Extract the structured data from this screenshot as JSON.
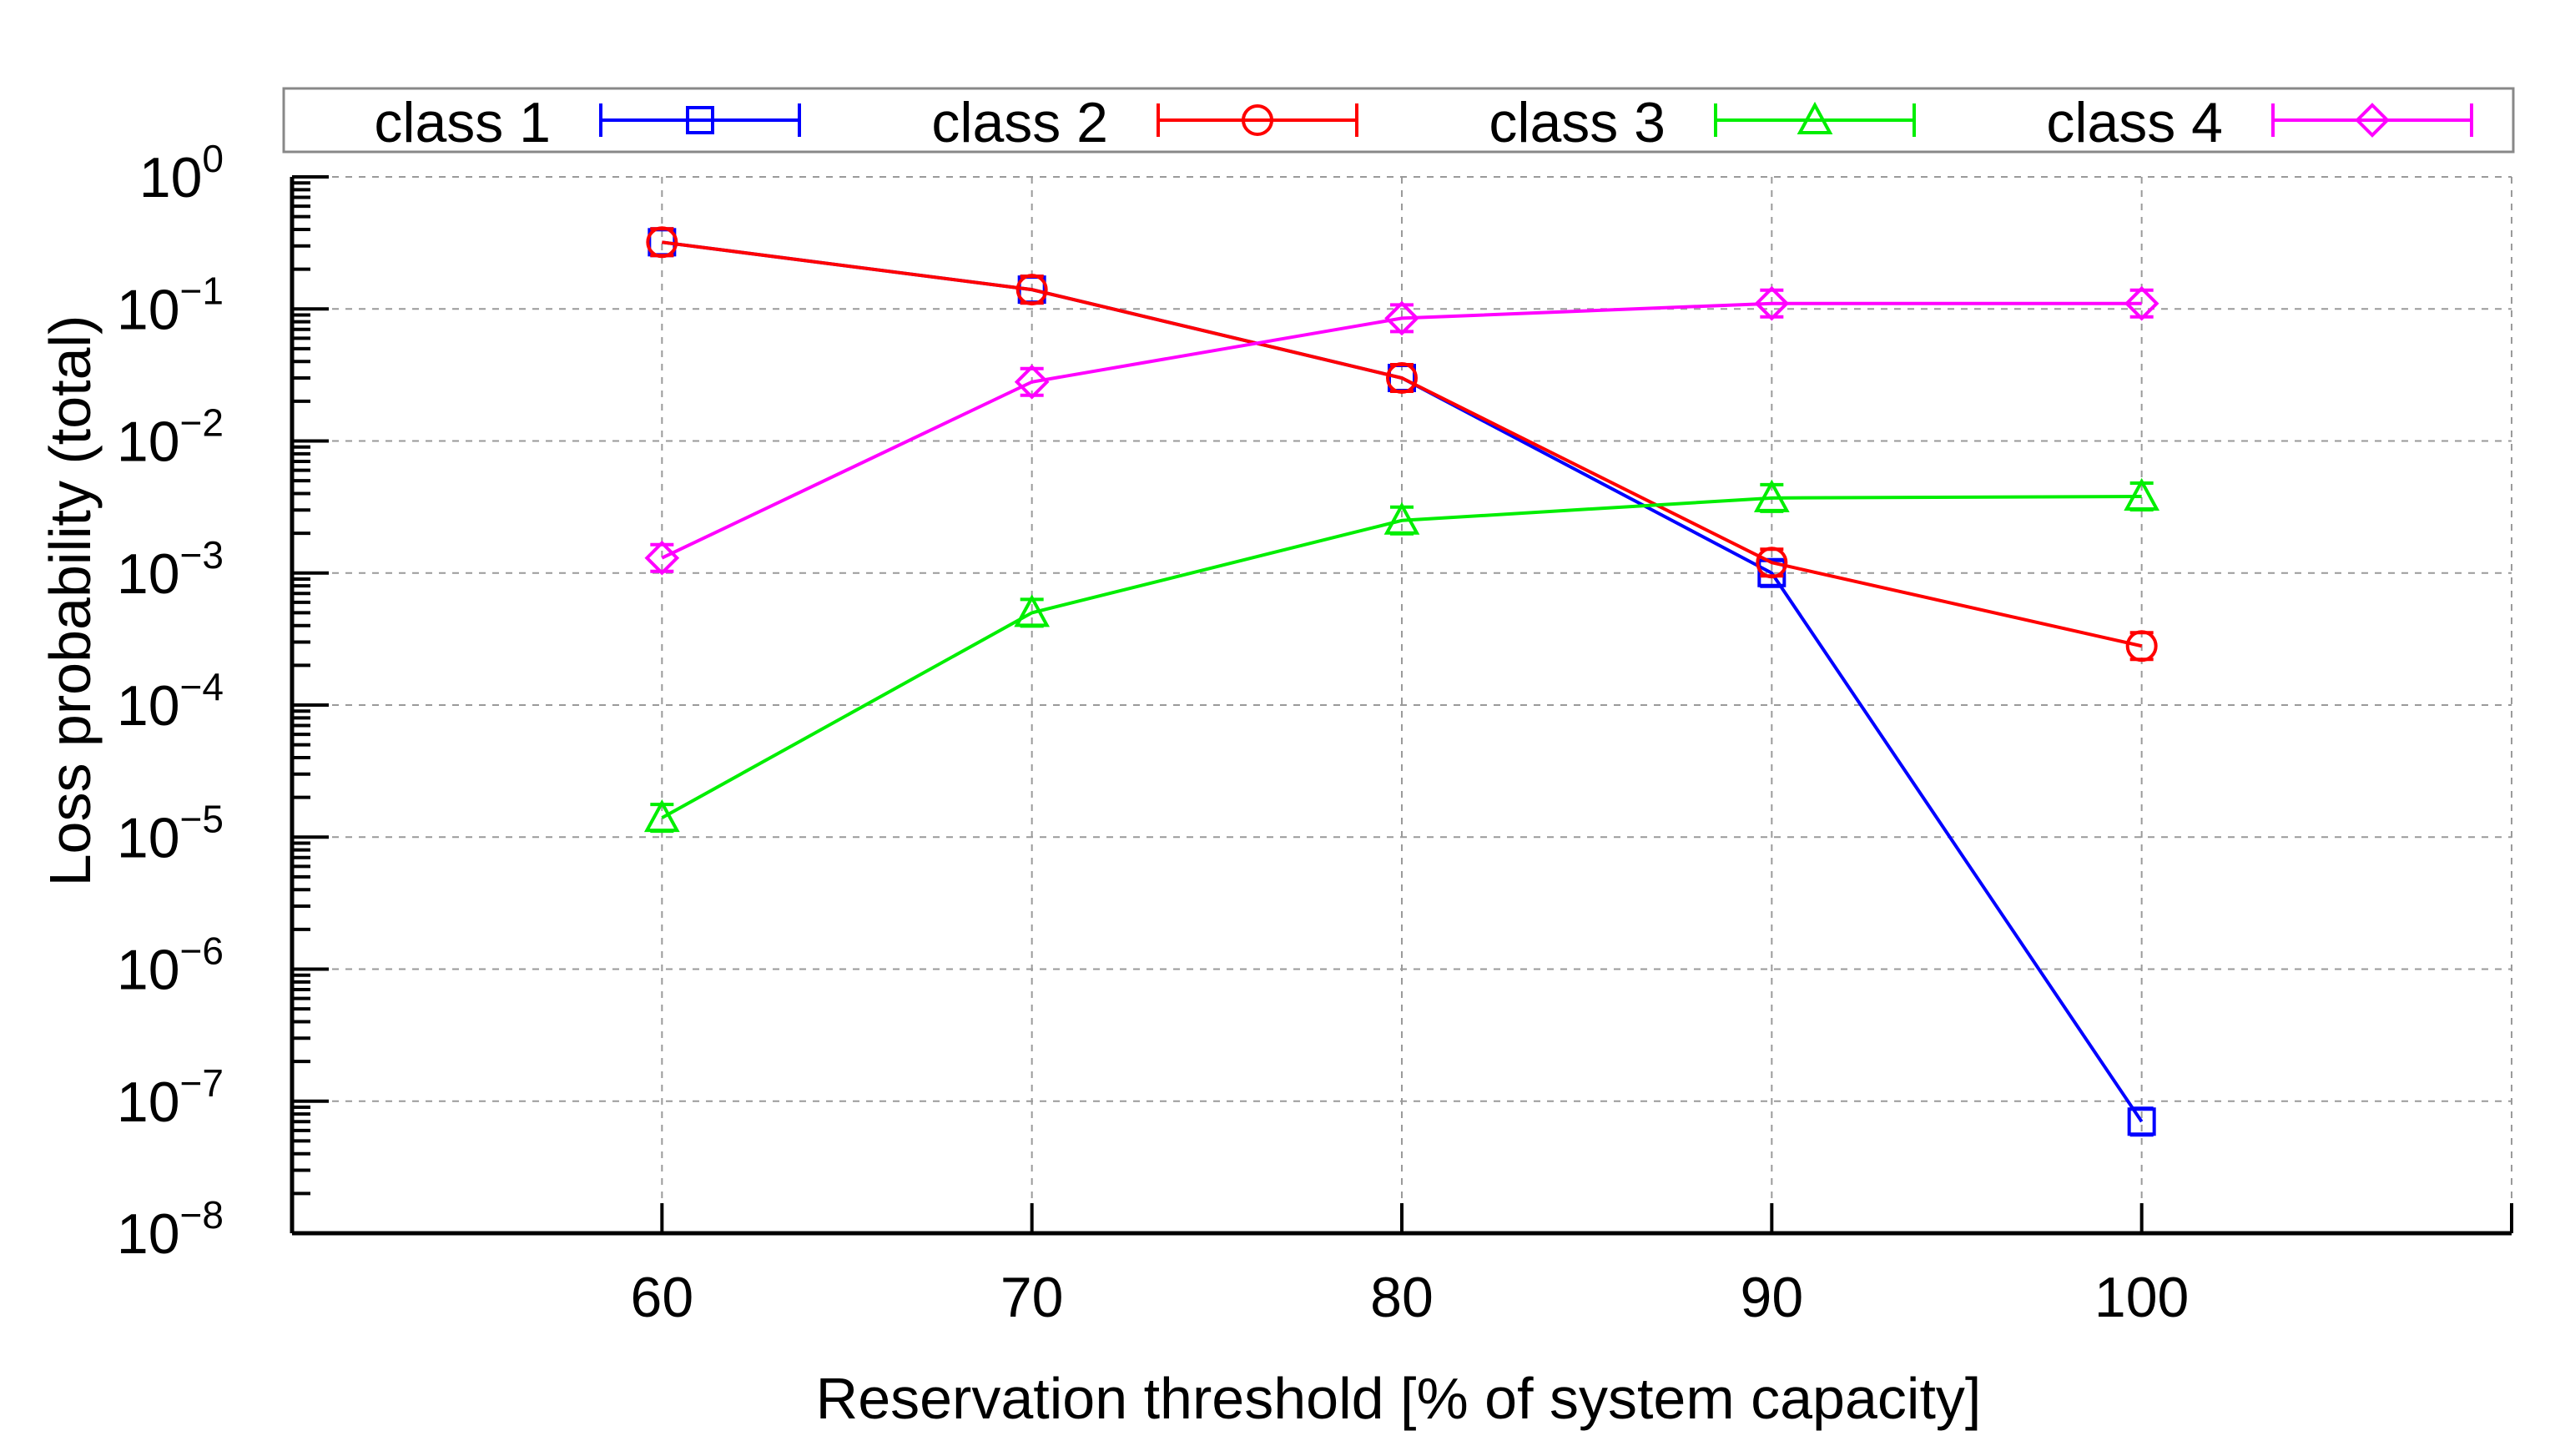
{
  "chart_data": {
    "type": "line",
    "title": "",
    "xlabel": "Reservation threshold [% of system capacity]",
    "ylabel": "Loss probability (total)",
    "yscale": "log",
    "xlim": [
      50,
      110
    ],
    "ylim": [
      1e-08,
      1
    ],
    "x_ticks": [
      60,
      70,
      80,
      90,
      100
    ],
    "x_tick_labels": [
      "60",
      "70",
      "80",
      "90",
      "100"
    ],
    "y_tick_base": "10",
    "y_tick_exponents": [
      "0",
      "−1",
      "−2",
      "−3",
      "−4",
      "−5",
      "−6",
      "−7",
      "−8"
    ],
    "grid": true,
    "legend_position": "top",
    "x": [
      60,
      70,
      80,
      90,
      100
    ],
    "series": [
      {
        "name": "class 1",
        "color": "#0000ff",
        "marker": "square",
        "values": [
          0.32,
          0.14,
          0.03,
          0.001,
          7e-08
        ]
      },
      {
        "name": "class 2",
        "color": "#ff0000",
        "marker": "circle",
        "values": [
          0.32,
          0.14,
          0.03,
          0.0012,
          0.00028
        ]
      },
      {
        "name": "class 3",
        "color": "#00ee00",
        "marker": "triangle",
        "values": [
          1.4e-05,
          0.0005,
          0.0025,
          0.0037,
          0.0038
        ]
      },
      {
        "name": "class 4",
        "color": "#ff00ff",
        "marker": "diamond",
        "values": [
          0.0013,
          0.028,
          0.085,
          0.11,
          0.11
        ]
      }
    ]
  }
}
